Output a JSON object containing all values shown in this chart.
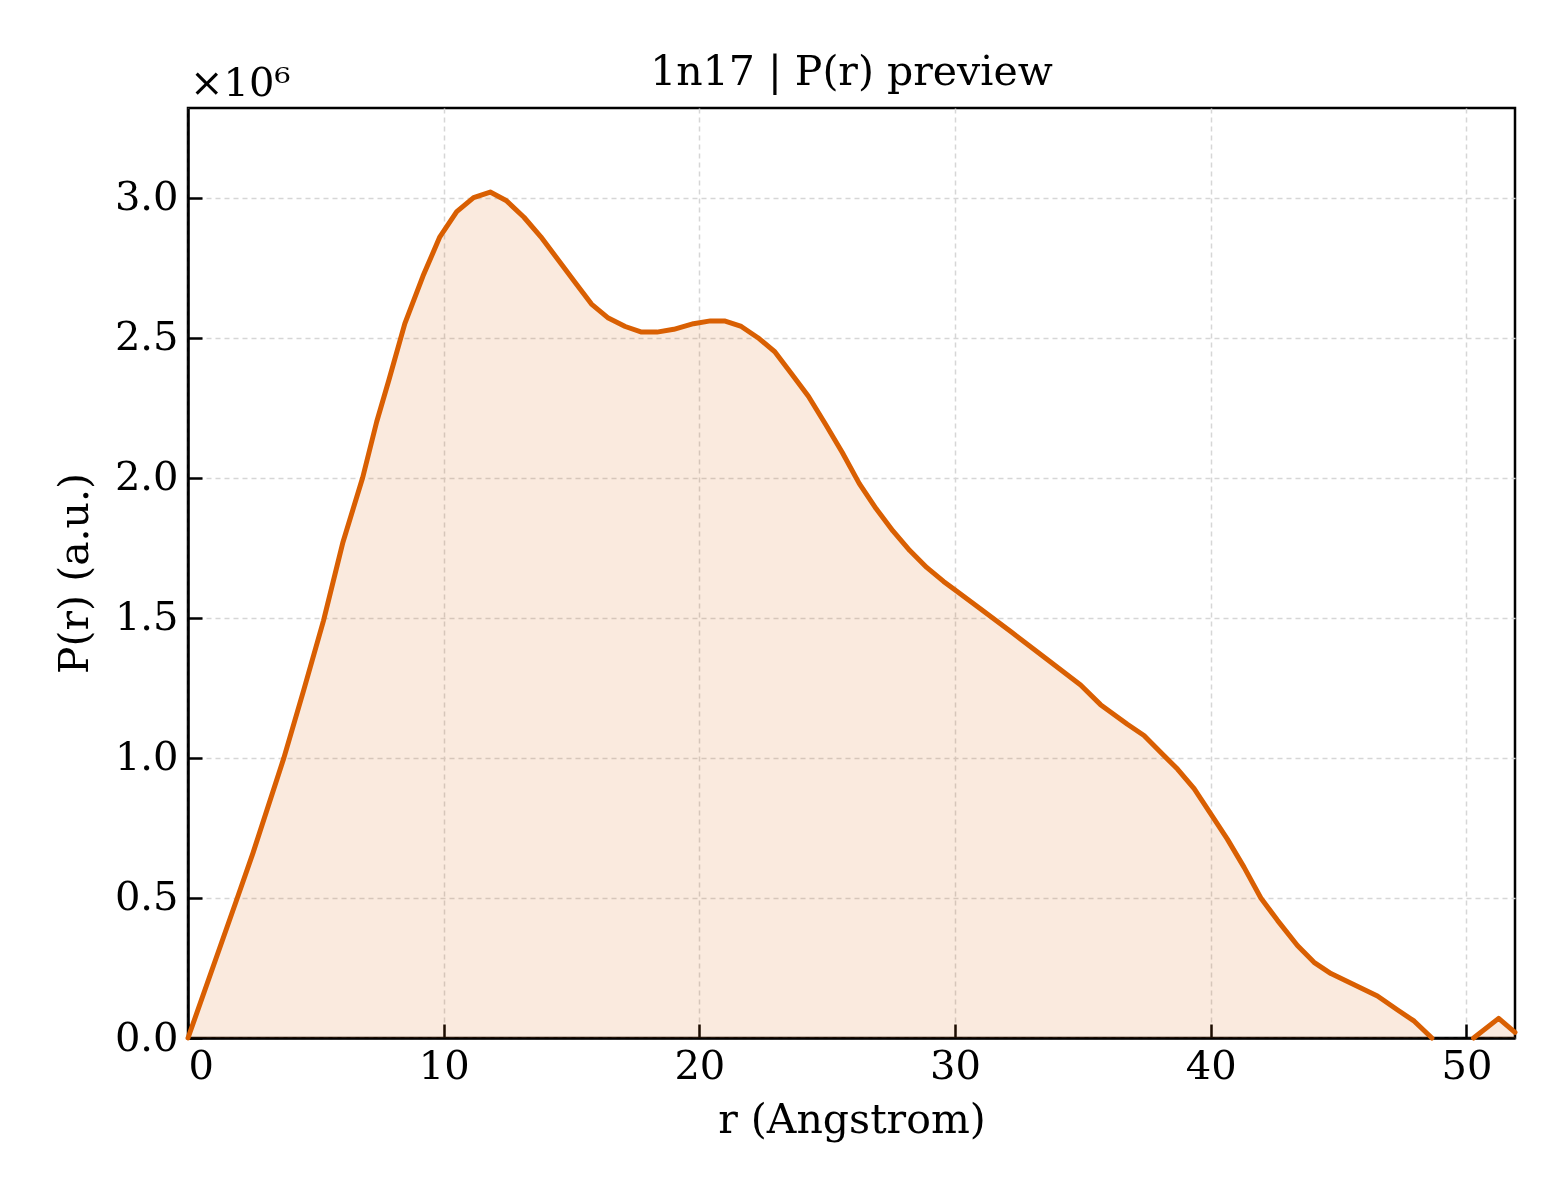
{
  "chart_data": {
    "type": "area",
    "title": "1n17 | P(r) preview",
    "xlabel": "r (Angstrom)",
    "ylabel": "P(r) (a.u.)",
    "annotations": [
      "×10⁶"
    ],
    "x": [
      0,
      1.89,
      2.54,
      3.75,
      4.52,
      5.3,
      6.06,
      6.83,
      7.38,
      7.86,
      8.48,
      9.19,
      9.85,
      10.51,
      11.17,
      11.82,
      12.44,
      13.14,
      13.8,
      14.46,
      15.12,
      15.78,
      16.44,
      17.1,
      17.74,
      18.34,
      19.0,
      19.77,
      20.43,
      20.98,
      21.64,
      22.29,
      22.95,
      23.61,
      24.27,
      24.94,
      25.59,
      26.25,
      26.91,
      27.57,
      28.23,
      28.89,
      29.55,
      29.99,
      30.87,
      32.19,
      33.62,
      34.91,
      35.69,
      36.74,
      37.39,
      38.04,
      38.7,
      39.35,
      39.93,
      40.65,
      41.3,
      41.96,
      42.61,
      43.39,
      44.04,
      44.7,
      45.61,
      46.52,
      47.31,
      47.96,
      48.65,
      49.5,
      50.28,
      51.26,
      51.9
    ],
    "series": [
      {
        "color": "#d95f02",
        "values": [
          0,
          0.49,
          0.66,
          1.0,
          1.24,
          1.49,
          1.77,
          2.0,
          2.2,
          2.35,
          2.55,
          2.72,
          2.86,
          2.95,
          3.0,
          3.02,
          2.99,
          2.93,
          2.86,
          2.78,
          2.7,
          2.62,
          2.57,
          2.54,
          2.52,
          2.52,
          2.53,
          2.55,
          2.56,
          2.56,
          2.54,
          2.5,
          2.45,
          2.37,
          2.29,
          2.19,
          2.09,
          1.98,
          1.89,
          1.81,
          1.74,
          1.68,
          1.63,
          1.6,
          1.54,
          1.45,
          1.35,
          1.26,
          1.19,
          1.12,
          1.08,
          1.02,
          0.96,
          0.89,
          0.81,
          0.71,
          0.61,
          0.5,
          0.42,
          0.33,
          0.27,
          0.23,
          0.19,
          0.15,
          0.1,
          0.06,
          0,
          null,
          0,
          0.07,
          0.02
        ]
      }
    ],
    "xlim": [
      0,
      51.9
    ],
    "ylim": [
      0,
      3.32
    ],
    "xticks": [
      0,
      10,
      20,
      30,
      40,
      50
    ],
    "yticks": [
      {
        "value": 0,
        "label": "0.0"
      },
      0.5,
      {
        "value": 1,
        "label": "1.0"
      },
      1.5,
      {
        "value": 2,
        "label": "2.0"
      },
      2.5,
      {
        "value": 3,
        "label": "3.0"
      }
    ],
    "grid": true
  }
}
